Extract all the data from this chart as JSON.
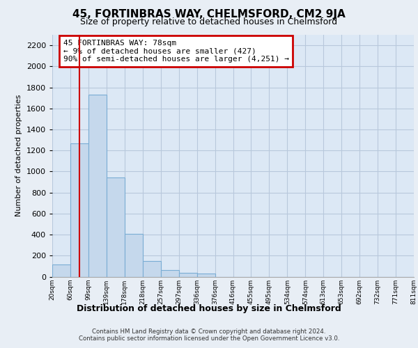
{
  "title": "45, FORTINBRAS WAY, CHELMSFORD, CM2 9JA",
  "subtitle": "Size of property relative to detached houses in Chelmsford",
  "xlabel": "Distribution of detached houses by size in Chelmsford",
  "ylabel": "Number of detached properties",
  "bin_labels": [
    "20sqm",
    "60sqm",
    "99sqm",
    "139sqm",
    "178sqm",
    "218sqm",
    "257sqm",
    "297sqm",
    "336sqm",
    "376sqm",
    "416sqm",
    "455sqm",
    "495sqm",
    "534sqm",
    "574sqm",
    "613sqm",
    "653sqm",
    "692sqm",
    "732sqm",
    "771sqm",
    "811sqm"
  ],
  "bar_heights": [
    115,
    1270,
    1730,
    940,
    405,
    148,
    65,
    38,
    28,
    0,
    0,
    0,
    0,
    0,
    0,
    0,
    0,
    0,
    0,
    0
  ],
  "bar_color": "#c5d8ec",
  "bar_edge_color": "#7aadd4",
  "vline_x": 78,
  "vline_color": "#cc0000",
  "ylim": [
    0,
    2300
  ],
  "yticks": [
    0,
    200,
    400,
    600,
    800,
    1000,
    1200,
    1400,
    1600,
    1800,
    2000,
    2200
  ],
  "annotation_line1": "45 FORTINBRAS WAY: 78sqm",
  "annotation_line2": "← 9% of detached houses are smaller (427)",
  "annotation_line3": "90% of semi-detached houses are larger (4,251) →",
  "annotation_box_color": "#cc0000",
  "footer1": "Contains HM Land Registry data © Crown copyright and database right 2024.",
  "footer2": "Contains public sector information licensed under the Open Government Licence v3.0.",
  "bg_color": "#e8eef5",
  "plot_bg_color": "#dce8f5",
  "grid_color": "#b8c8dc",
  "title_fontsize": 11,
  "subtitle_fontsize": 9
}
